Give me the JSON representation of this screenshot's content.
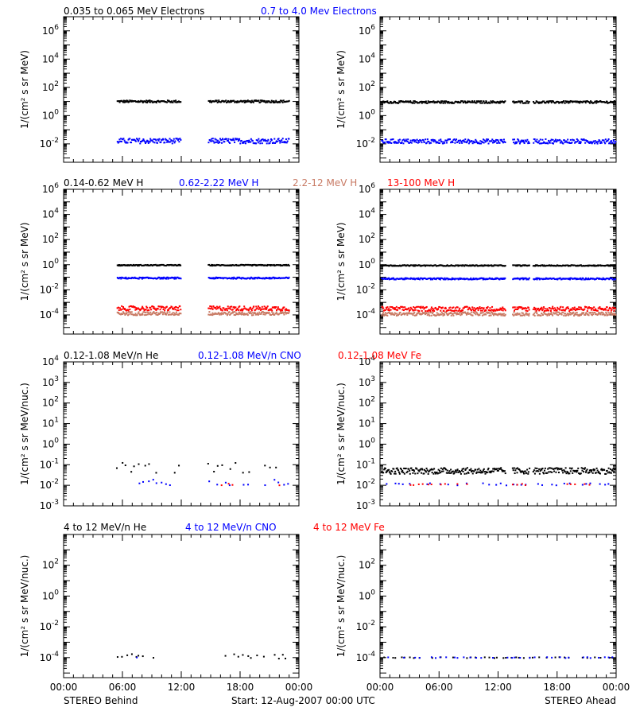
{
  "colors": {
    "black": "#000000",
    "blue": "#0000ff",
    "salmon": "#c87a64",
    "red": "#ff0000"
  },
  "rows": [
    {
      "legend": [
        {
          "text": "0.035 to 0.065 MeV Electrons",
          "color": "black"
        },
        {
          "text": "0.7 to 4.0 Mev Electrons",
          "color": "blue"
        }
      ],
      "ylabel": "1/(cm² s sr MeV)"
    },
    {
      "legend": [
        {
          "text": "0.14-0.62 MeV H",
          "color": "black"
        },
        {
          "text": "0.62-2.22 MeV H",
          "color": "blue"
        },
        {
          "text": "2.2-12 MeV H",
          "color": "salmon"
        },
        {
          "text": "13-100 MeV H",
          "color": "red"
        }
      ],
      "ylabel": "1/(cm² s sr MeV)"
    },
    {
      "legend": [
        {
          "text": "0.12-1.08 MeV/n He",
          "color": "black"
        },
        {
          "text": "0.12-1.08 MeV/n CNO",
          "color": "blue"
        },
        {
          "text": "0.12-1.08 MeV Fe",
          "color": "red"
        }
      ],
      "ylabel": "1/(cm² s sr MeV/nuc.)"
    },
    {
      "legend": [
        {
          "text": "4 to 12 MeV/n He",
          "color": "black"
        },
        {
          "text": "4 to 12 MeV/n CNO",
          "color": "blue"
        },
        {
          "text": "4 to 12 MeV Fe",
          "color": "red"
        }
      ],
      "ylabel": "1/(cm² s sr MeV/nuc.)"
    }
  ],
  "xticks": [
    "00:00",
    "06:00",
    "12:00",
    "18:00",
    "00:00"
  ],
  "footer": {
    "left": "STEREO Behind",
    "center": "Start: 12-Aug-2007 00:00 UTC",
    "right": "STEREO Ahead"
  },
  "chart_data": [
    {
      "panel": "electrons-behind",
      "type": "scatter",
      "yscale": "log",
      "xlim_hours": [
        0,
        24
      ],
      "ylim": [
        0.0005,
        10000000
      ],
      "yticks": [
        "10^-2",
        "10^0",
        "10^2",
        "10^4",
        "10^6"
      ],
      "series": [
        {
          "name": "0.035 to 0.065 MeV Electrons",
          "color": "black",
          "level": 10,
          "spread": 0.08,
          "segments": [
            [
              5.5,
              12.0
            ],
            [
              14.8,
              23.0
            ]
          ]
        },
        {
          "name": "0.7 to 4.0 Mev Electrons",
          "color": "blue",
          "level": 0.016,
          "spread": 0.18,
          "segments": [
            [
              5.5,
              12.0
            ],
            [
              14.8,
              23.0
            ]
          ]
        }
      ]
    },
    {
      "panel": "electrons-ahead",
      "type": "scatter",
      "yscale": "log",
      "xlim_hours": [
        0,
        24
      ],
      "ylim": [
        0.0005,
        10000000
      ],
      "yticks": [
        "10^-2",
        "10^0",
        "10^2",
        "10^4",
        "10^6"
      ],
      "series": [
        {
          "name": "0.035 to 0.065 MeV Electrons",
          "color": "black",
          "level": 9,
          "spread": 0.08,
          "segments": [
            [
              0.2,
              12.8
            ],
            [
              13.5,
              15.2
            ],
            [
              15.6,
              24
            ]
          ]
        },
        {
          "name": "0.7 to 4.0 Mev Electrons",
          "color": "blue",
          "level": 0.015,
          "spread": 0.16,
          "segments": [
            [
              0.2,
              12.8
            ],
            [
              13.5,
              15.2
            ],
            [
              15.6,
              24
            ]
          ]
        }
      ]
    },
    {
      "panel": "protons-behind",
      "type": "scatter",
      "yscale": "log",
      "xlim_hours": [
        0,
        24
      ],
      "ylim": [
        3e-06,
        1000000
      ],
      "yticks": [
        "10^-4",
        "10^-2",
        "10^0",
        "10^2",
        "10^4",
        "10^6"
      ],
      "series": [
        {
          "name": "0.14-0.62 MeV H",
          "color": "black",
          "level": 0.9,
          "spread": 0.04,
          "segments": [
            [
              5.5,
              12.0
            ],
            [
              14.8,
              23.0
            ]
          ]
        },
        {
          "name": "0.62-2.22 MeV H",
          "color": "blue",
          "level": 0.085,
          "spread": 0.06,
          "segments": [
            [
              5.5,
              12.0
            ],
            [
              14.8,
              23.0
            ]
          ]
        },
        {
          "name": "2.2-12 MeV H",
          "color": "salmon",
          "level": 0.00013,
          "spread": 0.14,
          "segments": [
            [
              5.5,
              12.0
            ],
            [
              14.8,
              23.0
            ]
          ]
        },
        {
          "name": "13-100 MeV H",
          "color": "red",
          "level": 0.00033,
          "spread": 0.18,
          "segments": [
            [
              5.5,
              12.0
            ],
            [
              14.8,
              23.0
            ]
          ]
        }
      ]
    },
    {
      "panel": "protons-ahead",
      "type": "scatter",
      "yscale": "log",
      "xlim_hours": [
        0,
        24
      ],
      "ylim": [
        3e-06,
        1000000
      ],
      "yticks": [
        "10^-4",
        "10^-2",
        "10^0",
        "10^2",
        "10^4",
        "10^6"
      ],
      "series": [
        {
          "name": "0.14-0.62 MeV H",
          "color": "black",
          "level": 0.85,
          "spread": 0.04,
          "segments": [
            [
              0.2,
              12.8
            ],
            [
              13.5,
              15.2
            ],
            [
              15.6,
              24
            ]
          ]
        },
        {
          "name": "0.62-2.22 MeV H",
          "color": "blue",
          "level": 0.075,
          "spread": 0.06,
          "segments": [
            [
              0.2,
              12.8
            ],
            [
              13.5,
              15.2
            ],
            [
              15.6,
              24
            ]
          ]
        },
        {
          "name": "2.2-12 MeV H",
          "color": "salmon",
          "level": 0.00012,
          "spread": 0.14,
          "segments": [
            [
              0.2,
              12.8
            ],
            [
              13.5,
              15.2
            ],
            [
              15.6,
              24
            ]
          ]
        },
        {
          "name": "13-100 MeV H",
          "color": "red",
          "level": 0.0003,
          "spread": 0.18,
          "segments": [
            [
              0.2,
              12.8
            ],
            [
              13.5,
              15.2
            ],
            [
              15.6,
              24
            ]
          ]
        }
      ]
    },
    {
      "panel": "ions-low-behind",
      "type": "scatter",
      "yscale": "log",
      "xlim_hours": [
        0,
        24
      ],
      "ylim": [
        0.001,
        10000
      ],
      "yticks": [
        "10^-3",
        "10^-2",
        "10^-1",
        "10^0",
        "10^1",
        "10^2",
        "10^3",
        "10^4"
      ],
      "series": [
        {
          "name": "0.12-1.08 MeV/n He",
          "color": "black",
          "level": 0.07,
          "spread": 0.25,
          "segments": [
            [
              5.5,
              12.0
            ],
            [
              14.8,
              23.0
            ]
          ],
          "sparse": true
        },
        {
          "name": "0.12-1.08 MeV/n CNO",
          "color": "blue",
          "level": 0.014,
          "spread": 0.15,
          "segments": [
            [
              5.5,
              12.0
            ],
            [
              14.8,
              23.0
            ]
          ],
          "sparse": true
        },
        {
          "name": "0.12-1.08 MeV Fe",
          "color": "red",
          "level": 0.011,
          "spread": 0.05,
          "segments": [
            [
              16.0,
              17.5
            ],
            [
              21.5,
              23.0
            ]
          ],
          "sparse": true
        }
      ]
    },
    {
      "panel": "ions-low-ahead",
      "type": "scatter",
      "yscale": "log",
      "xlim_hours": [
        0,
        24
      ],
      "ylim": [
        0.001,
        10000
      ],
      "yticks": [
        "10^-3",
        "10^-2",
        "10^-1",
        "10^0",
        "10^1",
        "10^2",
        "10^3",
        "10^4"
      ],
      "series": [
        {
          "name": "0.12-1.08 MeV/n He",
          "color": "black",
          "level": 0.05,
          "spread": 0.15,
          "segments": [
            [
              0.2,
              12.8
            ],
            [
              13.5,
              15.2
            ],
            [
              15.6,
              24
            ]
          ]
        },
        {
          "name": "0.12-1.08 MeV/n CNO",
          "color": "blue",
          "level": 0.011,
          "spread": 0.06,
          "segments": [
            [
              0.2,
              12.8
            ],
            [
              13.5,
              15.2
            ],
            [
              15.6,
              24
            ]
          ],
          "sparse": true
        },
        {
          "name": "0.12-1.08 MeV Fe",
          "color": "red",
          "level": 0.011,
          "spread": 0.04,
          "segments": [
            [
              3.0,
              9.5
            ],
            [
              13.5,
              15.0
            ],
            [
              19.0,
              21.5
            ]
          ],
          "sparse": true
        }
      ]
    },
    {
      "panel": "ions-high-behind",
      "type": "scatter",
      "yscale": "log",
      "xlim_hours": [
        0,
        24
      ],
      "ylim": [
        5e-06,
        10000
      ],
      "yticks": [
        "10^-4",
        "10^-2",
        "10^0",
        "10^2"
      ],
      "series": [
        {
          "name": "4 to 12 MeV/n He",
          "color": "black",
          "level": 0.00012,
          "spread": 0.15,
          "segments": [
            [
              5.5,
              9.5
            ],
            [
              16.0,
              22.8
            ]
          ],
          "sparse": true
        },
        {
          "name": "4 to 12 MeV/n CNO",
          "color": "blue",
          "level": 0.00011,
          "spread": 0.05,
          "segments": [
            [
              7.0,
              7.8
            ]
          ],
          "sparse": true
        }
      ]
    },
    {
      "panel": "ions-high-ahead",
      "type": "scatter",
      "yscale": "log",
      "xlim_hours": [
        0,
        24
      ],
      "ylim": [
        5e-06,
        10000
      ],
      "yticks": [
        "10^-4",
        "10^-2",
        "10^0",
        "10^2"
      ],
      "series": [
        {
          "name": "4 to 12 MeV/n He",
          "color": "black",
          "level": 0.0001,
          "spread": 0.03,
          "segments": [
            [
              0.3,
              23.7
            ]
          ],
          "sparse": true
        },
        {
          "name": "4 to 12 MeV/n CNO",
          "color": "blue",
          "level": 0.0001,
          "spread": 0.03,
          "segments": [
            [
              0.3,
              23.7
            ]
          ],
          "sparse": true
        }
      ]
    }
  ]
}
